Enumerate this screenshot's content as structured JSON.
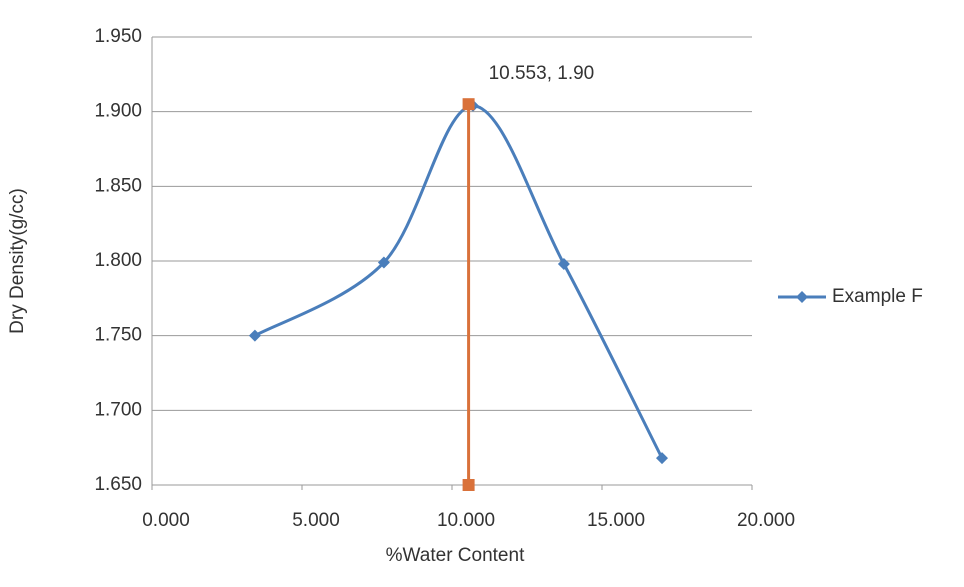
{
  "chart_data": {
    "type": "scatter",
    "x_label": "%Water Content",
    "y_label": "Dry Density(g/cc)",
    "xlim": [
      0,
      20
    ],
    "ylim": [
      1.65,
      1.95
    ],
    "xticks": [
      {
        "value": 0,
        "label": "0.000"
      },
      {
        "value": 5,
        "label": "5.000"
      },
      {
        "value": 10,
        "label": "10.000"
      },
      {
        "value": 15,
        "label": "15.000"
      },
      {
        "value": 20,
        "label": "20.000"
      }
    ],
    "yticks": [
      {
        "value": 1.65,
        "label": "1.650"
      },
      {
        "value": 1.7,
        "label": "1.700"
      },
      {
        "value": 1.75,
        "label": "1.750"
      },
      {
        "value": 1.8,
        "label": "1.800"
      },
      {
        "value": 1.85,
        "label": "1.850"
      },
      {
        "value": 1.9,
        "label": "1.900"
      },
      {
        "value": 1.95,
        "label": "1.950"
      }
    ],
    "grid": true,
    "legend": "right",
    "smooth": true,
    "series": [
      {
        "name": "Example F",
        "color": "#4a7ebb",
        "marker": "diamond",
        "x": [
          3.43,
          7.73,
          10.7,
          13.73,
          17.0
        ],
        "values": [
          1.75,
          1.799,
          1.904,
          1.798,
          1.668
        ]
      },
      {
        "color": "#d9713a",
        "marker": "square",
        "smooth": false,
        "x": [
          10.553,
          10.553
        ],
        "values": [
          1.65,
          1.905
        ]
      }
    ],
    "annotations": [
      {
        "text": "10.553, 1.90",
        "x": 10.553,
        "y": 1.905
      }
    ]
  }
}
